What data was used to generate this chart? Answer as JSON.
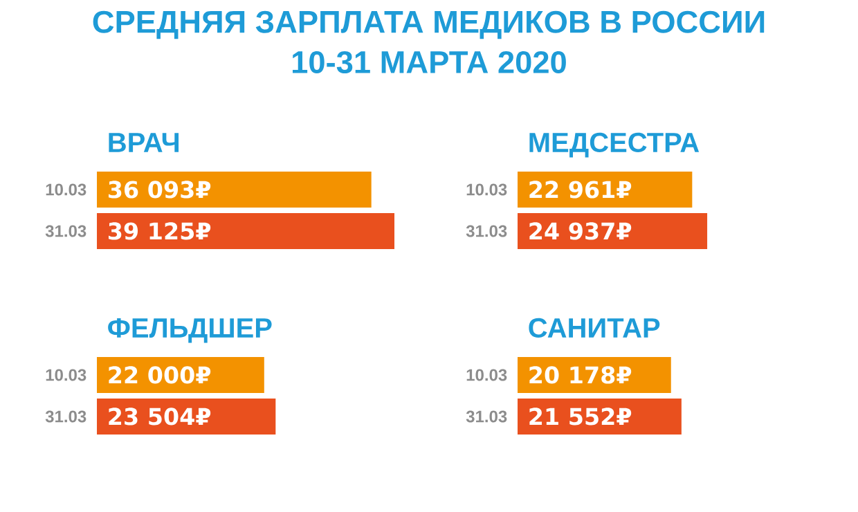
{
  "chart_data": [
    {
      "type": "other",
      "title": "СРЕДНЯЯ ЗАРПЛАТА МЕДИКОВ В РОССИИ",
      "subtitle": "10-31 МАРТА 2020"
    },
    {
      "type": "bar",
      "orientation": "horizontal",
      "title": "ВРАЧ",
      "categories": [
        "10.03",
        "31.03"
      ],
      "values": [
        36093,
        39125
      ],
      "colors": [
        "#f39200",
        "#e9501e"
      ],
      "value_labels": [
        "36 093₽",
        "39 125₽"
      ]
    },
    {
      "type": "bar",
      "orientation": "horizontal",
      "title": "МЕДСЕСТРА",
      "categories": [
        "10.03",
        "31.03"
      ],
      "values": [
        22961,
        24937
      ],
      "colors": [
        "#f39200",
        "#e9501e"
      ],
      "value_labels": [
        "22 961₽",
        "24 937₽"
      ]
    },
    {
      "type": "bar",
      "orientation": "horizontal",
      "title": "ФЕЛЬДШЕР",
      "categories": [
        "10.03",
        "31.03"
      ],
      "values": [
        22000,
        23504
      ],
      "colors": [
        "#f39200",
        "#e9501e"
      ],
      "value_labels": [
        "22 000₽",
        "23 504₽"
      ]
    },
    {
      "type": "bar",
      "orientation": "horizontal",
      "title": "САНИТАР",
      "categories": [
        "10.03",
        "31.03"
      ],
      "values": [
        20178,
        21552
      ],
      "colors": [
        "#f39200",
        "#e9501e"
      ],
      "value_labels": [
        "20 178₽",
        "21 552₽"
      ]
    }
  ]
}
